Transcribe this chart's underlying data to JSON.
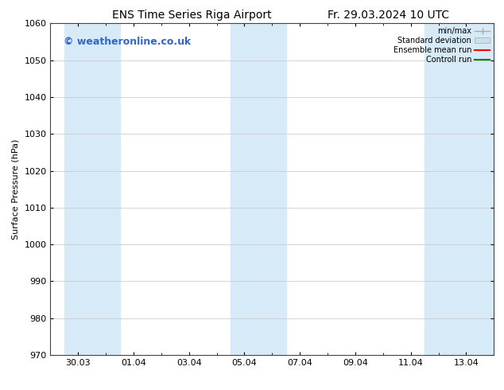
{
  "title_left": "ENS Time Series Riga Airport",
  "title_right": "Fr. 29.03.2024 10 UTC",
  "ylabel": "Surface Pressure (hPa)",
  "ylim": [
    970,
    1060
  ],
  "yticks": [
    970,
    980,
    990,
    1000,
    1010,
    1020,
    1030,
    1040,
    1050,
    1060
  ],
  "xlim": [
    0,
    16
  ],
  "xtick_labels": [
    "30.03",
    "01.04",
    "03.04",
    "05.04",
    "07.04",
    "09.04",
    "11.04",
    "13.04"
  ],
  "xtick_positions": [
    1,
    3,
    5,
    7,
    9,
    11,
    13,
    15
  ],
  "shaded_bands": [
    {
      "x_start": 0.5,
      "x_end": 2.5
    },
    {
      "x_start": 6.5,
      "x_end": 8.5
    },
    {
      "x_start": 13.5,
      "x_end": 16.0
    }
  ],
  "shaded_color": "#d6eaf8",
  "watermark_text": "© weatheronline.co.uk",
  "watermark_color": "#3366cc",
  "legend_labels": [
    "min/max",
    "Standard deviation",
    "Ensemble mean run",
    "Controll run"
  ],
  "legend_colors": [
    "#999999",
    "#c8dff0",
    "red",
    "green"
  ],
  "bg_color": "#ffffff",
  "grid_color": "#cccccc",
  "title_fontsize": 10,
  "axis_label_fontsize": 8,
  "tick_fontsize": 8,
  "watermark_fontsize": 9
}
